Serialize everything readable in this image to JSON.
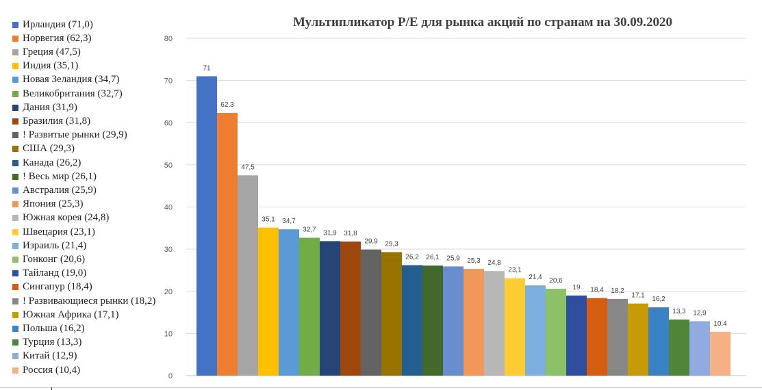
{
  "chart_data": {
    "type": "bar",
    "title": "Мультипликатор P/E для рынка акций по странам на 30.09.2020",
    "xlabel": "",
    "ylabel": "",
    "ylim": [
      0,
      80
    ],
    "yticks": [
      "0",
      "10",
      "20",
      "30",
      "40",
      "50",
      "60",
      "70",
      "80"
    ],
    "grid": true,
    "legend_position": "left",
    "categories": [
      "Ирландия",
      "Норвегия",
      "Греция",
      "Индия",
      "Новая Зеландия",
      "Великобритания",
      "Дания",
      "Бразилия",
      "! Развитые рынки",
      "США",
      "Канада",
      "! Весь мир",
      "Австралия",
      "Япония",
      "Южная корея",
      "Швецария",
      "Израиль",
      "Гонконг",
      "Тайланд",
      "Сингапур",
      "! Развивающиеся рынки",
      "Южная Африка",
      "Польша",
      "Турция",
      "Китай",
      "Россия"
    ],
    "legend_labels": [
      "Ирландия (71,0)",
      "Норвегия (62,3)",
      "Греция (47,5)",
      "Индия (35,1)",
      "Новая Зеландия (34,7)",
      "Великобритания (32,7)",
      "Дания (31,9)",
      "Бразилия (31,8)",
      "! Развитые рынки (29,9)",
      "США (29,3)",
      "Канада (26,2)",
      "! Весь мир (26,1)",
      "Австралия (25,9)",
      "Япония (25,3)",
      "Южная корея (24,8)",
      "Швецария (23,1)",
      "Израиль (21,4)",
      "Гонконг (20,6)",
      "Тайланд (19,0)",
      "Сингапур (18,4)",
      "! Развивающиеся рынки (18,2)",
      "Южная Африка (17,1)",
      "Польша (16,2)",
      "Турция (13,3)",
      "Китай (12,9)",
      "Россия (10,4)"
    ],
    "values": [
      71.0,
      62.3,
      47.5,
      35.1,
      34.7,
      32.7,
      31.9,
      31.8,
      29.9,
      29.3,
      26.2,
      26.1,
      25.9,
      25.3,
      24.8,
      23.1,
      21.4,
      20.6,
      19.0,
      18.4,
      18.2,
      17.1,
      16.2,
      13.3,
      12.9,
      10.4
    ],
    "data_labels": [
      "71",
      "62,3",
      "47,5",
      "35,1",
      "34,7",
      "32,7",
      "31,9",
      "31,8",
      "29,9",
      "29,3",
      "26,2",
      "26,1",
      "25,9",
      "25,3",
      "24,8",
      "23,1",
      "21,4",
      "20,6",
      "19",
      "18,4",
      "18,2",
      "17,1",
      "16,2",
      "13,3",
      "12,9",
      "10,4"
    ],
    "colors": [
      "#4472c4",
      "#ed7d31",
      "#a5a5a5",
      "#ffc000",
      "#5b9bd5",
      "#70ad47",
      "#264478",
      "#9e480e",
      "#636363",
      "#997300",
      "#255e91",
      "#43682b",
      "#698ed0",
      "#f1975a",
      "#b7b7b7",
      "#ffcd33",
      "#7cafdd",
      "#8cc168",
      "#2f4f9e",
      "#d45d12",
      "#878787",
      "#c89b06",
      "#3b82c4",
      "#4e8538",
      "#91aadf",
      "#f4b183"
    ]
  }
}
